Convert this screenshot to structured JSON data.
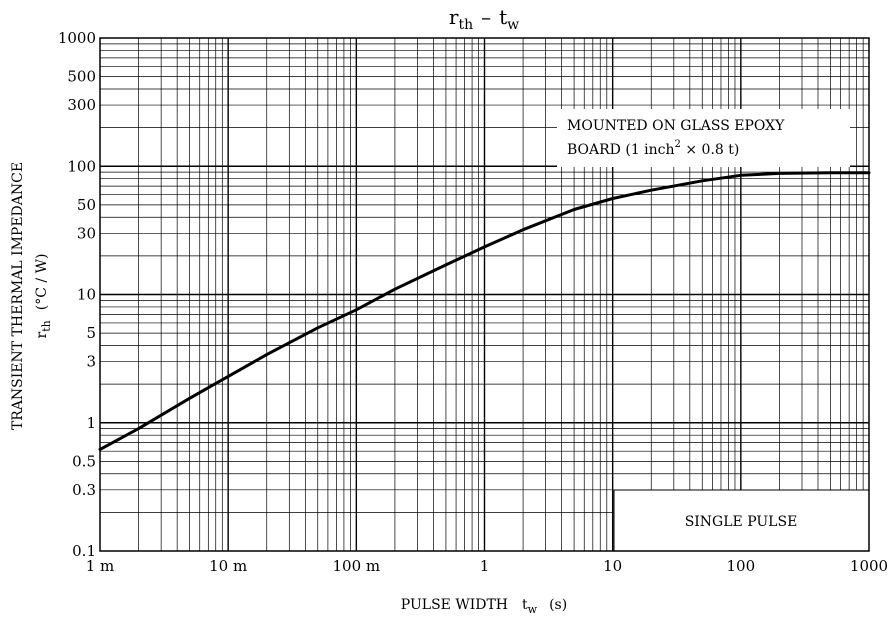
{
  "chart_data": {
    "type": "line",
    "title": {
      "main": "r",
      "main_sub": "th",
      "dash": "–",
      "second": "t",
      "second_sub": "w"
    },
    "xlabel": {
      "text": "PULSE WIDTH",
      "symbol": "t",
      "symbol_sub": "w",
      "unit": "(s)"
    },
    "ylabel": {
      "text": "TRANSIENT THERMAL IMPEDANCE",
      "symbol": "r",
      "symbol_sub": "th",
      "unit": "(°C / W)"
    },
    "x_scale": "log",
    "y_scale": "log",
    "xlim": [
      0.001,
      1000
    ],
    "ylim": [
      0.1,
      1000
    ],
    "grid": true,
    "x_ticks": [
      {
        "value": 0.001,
        "label": "1 m"
      },
      {
        "value": 0.01,
        "label": "10 m"
      },
      {
        "value": 0.1,
        "label": "100 m"
      },
      {
        "value": 1,
        "label": "1"
      },
      {
        "value": 10,
        "label": "10"
      },
      {
        "value": 100,
        "label": "100"
      },
      {
        "value": 1000,
        "label": "1000"
      }
    ],
    "y_ticks": [
      {
        "value": 0.1,
        "label": "0.1"
      },
      {
        "value": 0.3,
        "label": "0.3"
      },
      {
        "value": 0.5,
        "label": "0.5"
      },
      {
        "value": 1,
        "label": "1"
      },
      {
        "value": 3,
        "label": "3"
      },
      {
        "value": 5,
        "label": "5"
      },
      {
        "value": 10,
        "label": "10"
      },
      {
        "value": 30,
        "label": "30"
      },
      {
        "value": 50,
        "label": "50"
      },
      {
        "value": 100,
        "label": "100"
      },
      {
        "value": 300,
        "label": "300"
      },
      {
        "value": 500,
        "label": "500"
      },
      {
        "value": 1000,
        "label": "1000"
      }
    ],
    "series": [
      {
        "x": [
          0.001,
          0.002,
          0.005,
          0.01,
          0.02,
          0.05,
          0.1,
          0.2,
          0.5,
          1,
          2,
          5,
          10,
          20,
          50,
          100,
          200,
          500,
          1000
        ],
        "y": [
          0.62,
          0.9,
          1.55,
          2.3,
          3.4,
          5.5,
          7.6,
          11,
          17,
          23.5,
          32,
          46,
          56,
          65,
          77,
          85,
          88,
          89,
          89
        ]
      }
    ],
    "annotations": [
      {
        "id": "mounting",
        "line1": "MOUNTED ON GLASS EPOXY",
        "line2_a": "BOARD (1 inch",
        "line2_sup": "2",
        "line2_b": " × 0.8 t)",
        "position": "top-right"
      },
      {
        "id": "pulse",
        "text": "SINGLE PULSE",
        "position": "bottom-right"
      }
    ]
  }
}
